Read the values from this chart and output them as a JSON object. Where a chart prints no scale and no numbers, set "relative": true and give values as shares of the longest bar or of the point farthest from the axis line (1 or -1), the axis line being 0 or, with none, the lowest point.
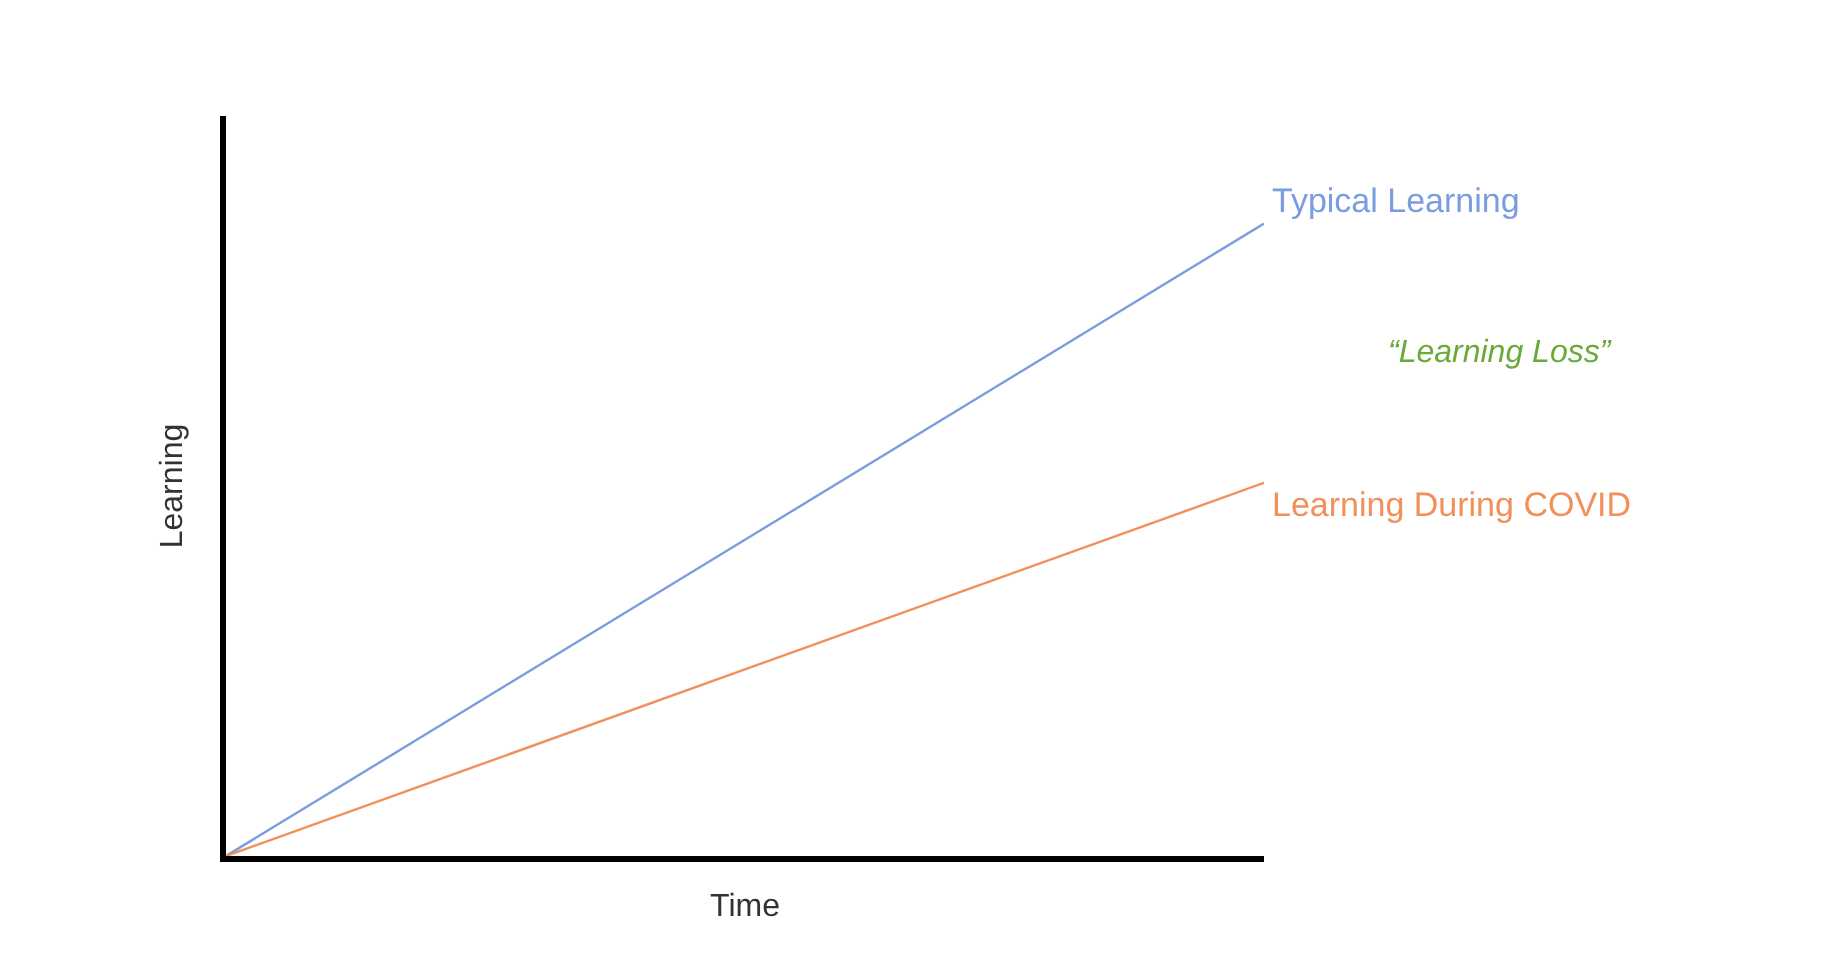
{
  "chart_data": {
    "type": "line",
    "relative": true,
    "xlabel": "Time",
    "ylabel": "Learning",
    "categories": [
      null,
      null
    ],
    "series": [
      {
        "name": "Typical Learning",
        "color": "#7a9de0",
        "values": [
          0,
          1
        ]
      },
      {
        "name": "Learning During COVID",
        "color": "#f0905a",
        "values": [
          0,
          0.59
        ]
      }
    ],
    "annotations": [
      "“Learning Loss”"
    ],
    "legend": false,
    "marker": "none",
    "line_style": "solid"
  }
}
